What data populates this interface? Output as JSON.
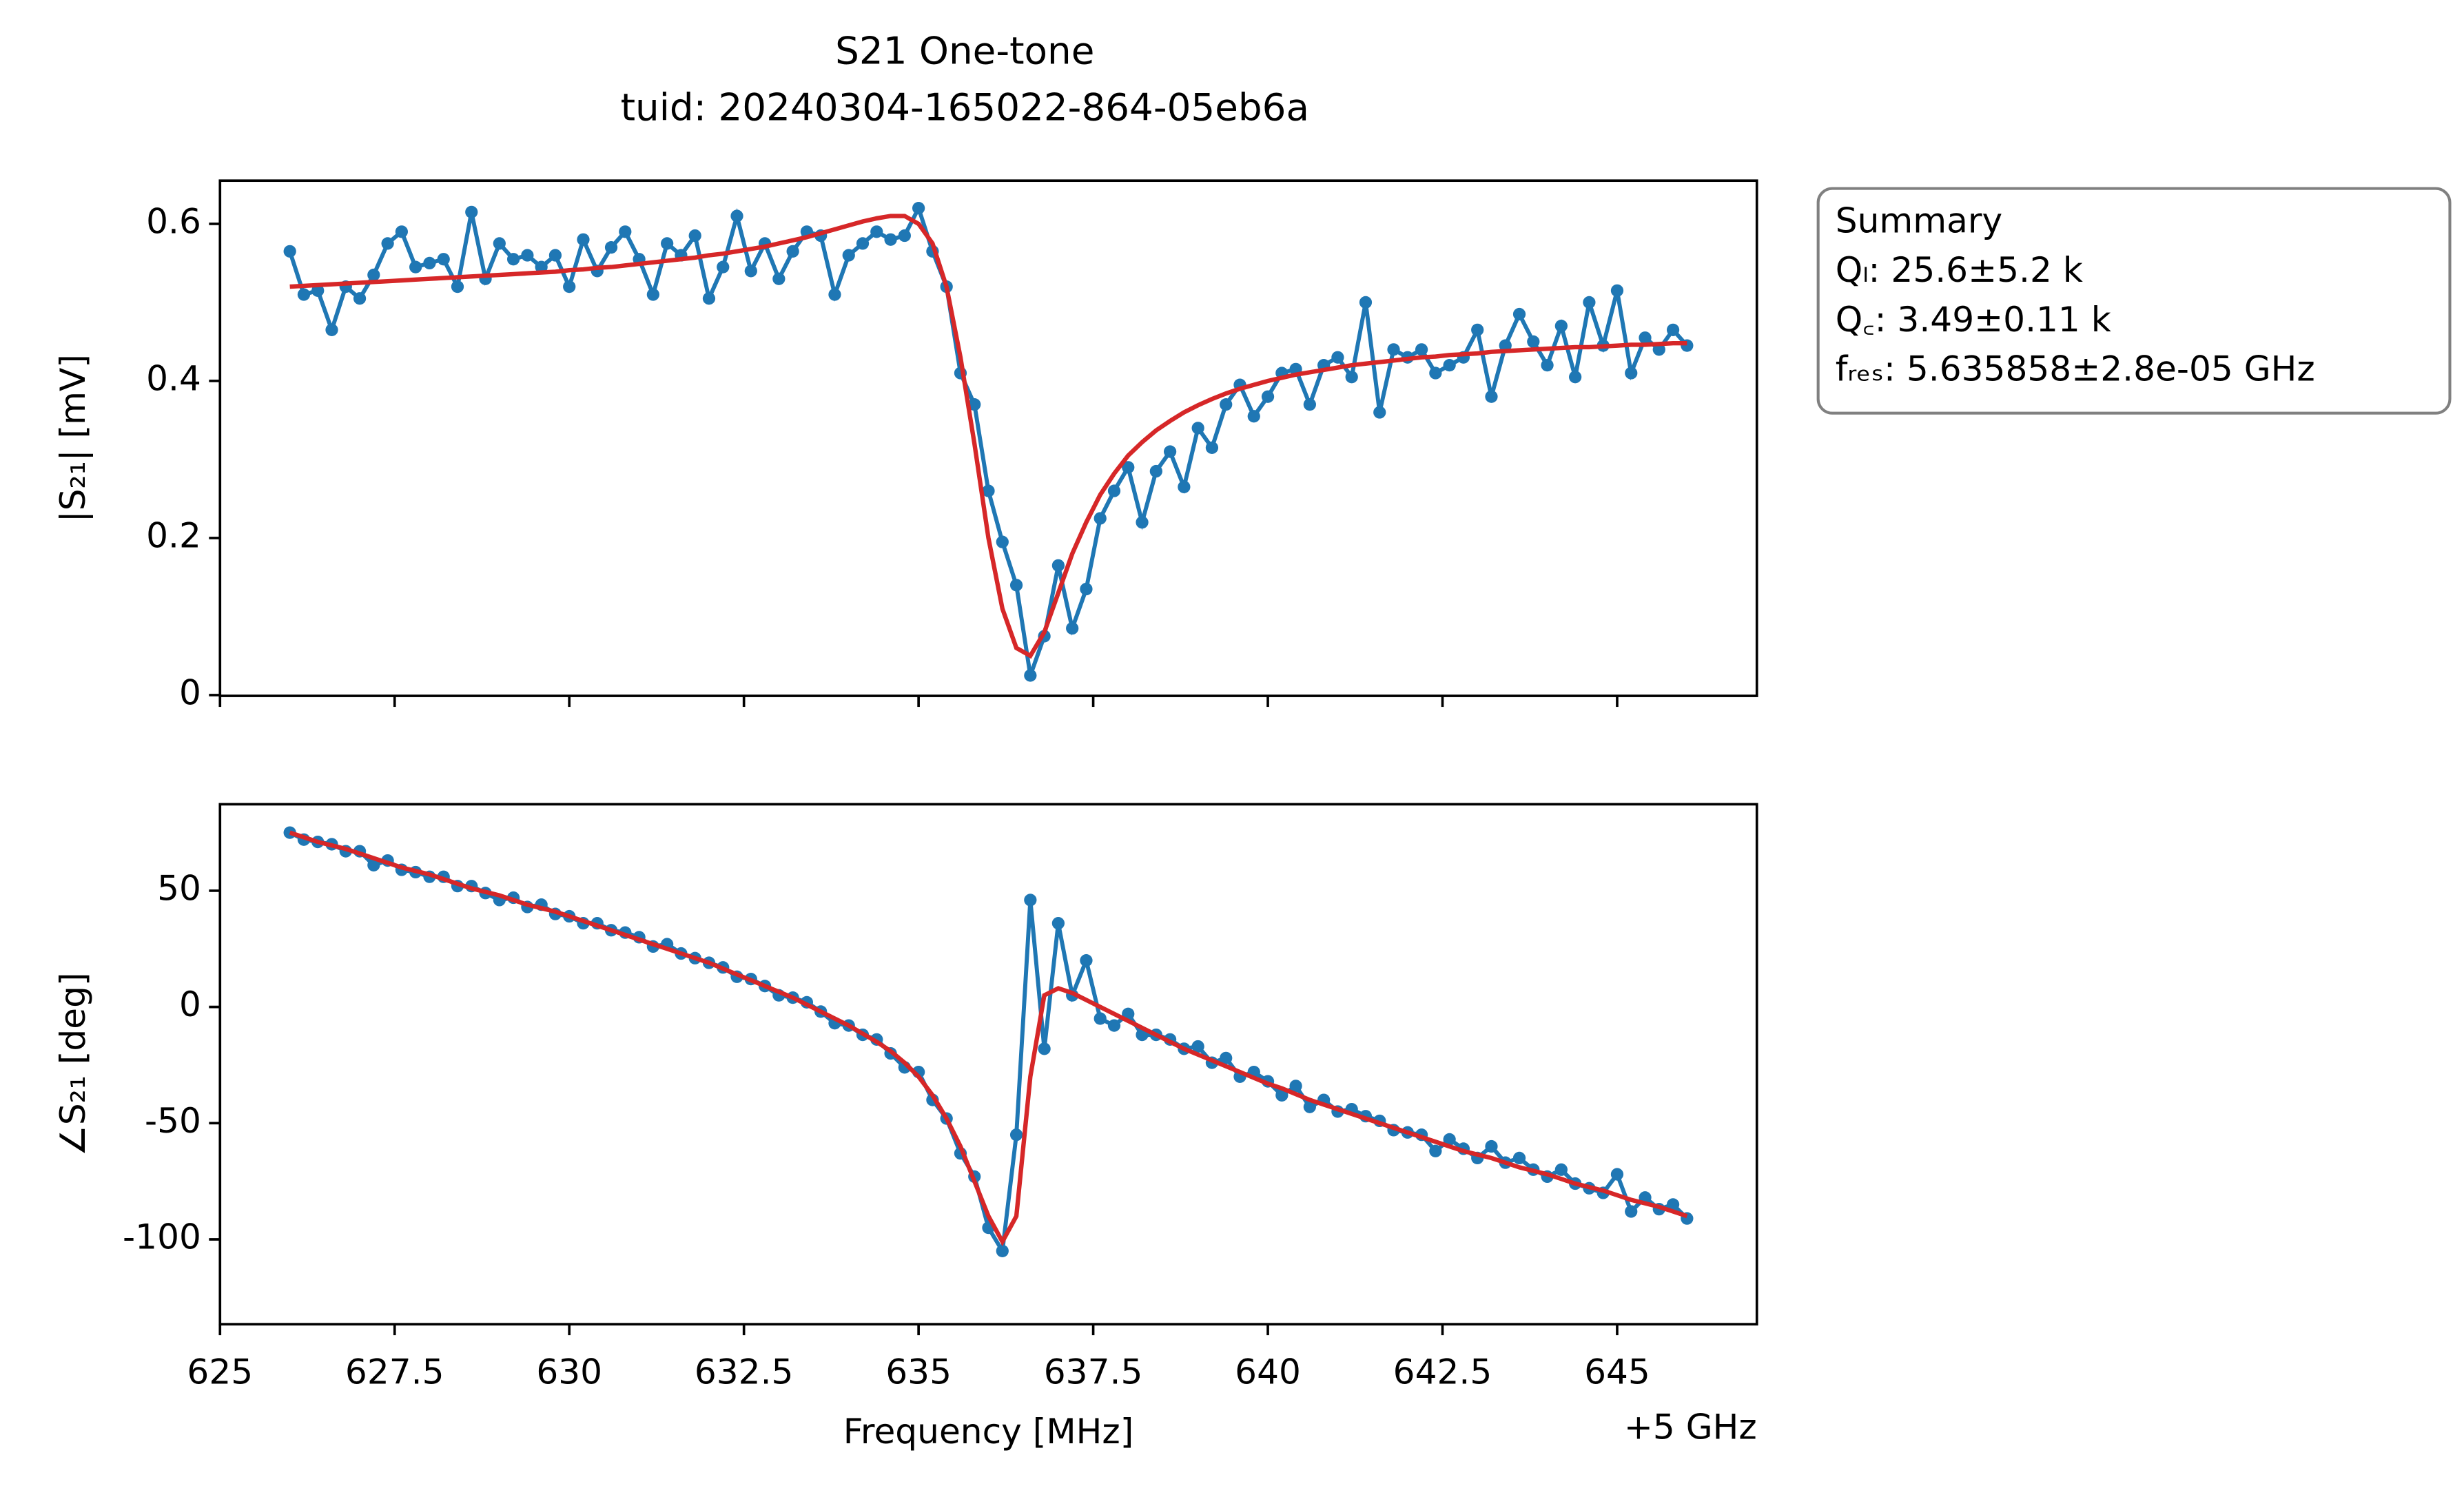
{
  "chart_data": [
    {
      "type": "line",
      "title": "S21 One-tone",
      "subtitle": "tuid: 20240304-165022-864-05eb6a",
      "ylabel": "|S₂₁| [mV]",
      "annotation": [
        "Summary",
        "Qₗ: 25.6±5.2 k",
        "Q꜀: 3.49±0.11 k",
        "fᵣₑₛ: 5.635858±2.8e-05 GHz"
      ],
      "xlim": [
        625,
        647
      ],
      "xticks": [
        625,
        627.5,
        630,
        632.5,
        635,
        637.5,
        640,
        642.5,
        645
      ],
      "show_xtick_labels": false,
      "ylim": [
        -0.001,
        0.655
      ],
      "yticks": [
        0,
        0.2,
        0.4,
        0.6
      ],
      "x": [
        626,
        626.2,
        626.4,
        626.6,
        626.8,
        627,
        627.2,
        627.4,
        627.6,
        627.8,
        628,
        628.2,
        628.4,
        628.6,
        628.8,
        629,
        629.2,
        629.4,
        629.6,
        629.8,
        630,
        630.2,
        630.4,
        630.6,
        630.8,
        631,
        631.2,
        631.4,
        631.6,
        631.8,
        632,
        632.2,
        632.4,
        632.6,
        632.8,
        633,
        633.2,
        633.4,
        633.6,
        633.8,
        634,
        634.2,
        634.4,
        634.6,
        634.8,
        635,
        635.2,
        635.4,
        635.6,
        635.8,
        636,
        636.2,
        636.4,
        636.6,
        636.8,
        637,
        637.2,
        637.4,
        637.6,
        637.8,
        638,
        638.2,
        638.4,
        638.6,
        638.8,
        639,
        639.2,
        639.4,
        639.6,
        639.8,
        640,
        640.2,
        640.4,
        640.6,
        640.8,
        641,
        641.2,
        641.4,
        641.6,
        641.8,
        642,
        642.2,
        642.4,
        642.6,
        642.8,
        643,
        643.2,
        643.4,
        643.6,
        643.8,
        644,
        644.2,
        644.4,
        644.6,
        644.8,
        645,
        645.2,
        645.4,
        645.6,
        645.8,
        646
      ],
      "series": [
        {
          "color": "#1f77b4",
          "marker": true,
          "values": [
            0.565,
            0.51,
            0.515,
            0.465,
            0.52,
            0.505,
            0.535,
            0.575,
            0.59,
            0.545,
            0.55,
            0.555,
            0.52,
            0.615,
            0.53,
            0.575,
            0.555,
            0.56,
            0.545,
            0.56,
            0.52,
            0.58,
            0.54,
            0.57,
            0.59,
            0.555,
            0.51,
            0.575,
            0.56,
            0.585,
            0.505,
            0.545,
            0.61,
            0.54,
            0.575,
            0.53,
            0.565,
            0.59,
            0.585,
            0.51,
            0.56,
            0.575,
            0.59,
            0.58,
            0.585,
            0.62,
            0.565,
            0.52,
            0.41,
            0.37,
            0.26,
            0.195,
            0.14,
            0.025,
            0.075,
            0.165,
            0.085,
            0.135,
            0.225,
            0.26,
            0.29,
            0.22,
            0.285,
            0.31,
            0.265,
            0.34,
            0.315,
            0.37,
            0.395,
            0.355,
            0.38,
            0.41,
            0.415,
            0.37,
            0.42,
            0.43,
            0.405,
            0.5,
            0.36,
            0.44,
            0.43,
            0.44,
            0.41,
            0.42,
            0.43,
            0.465,
            0.38,
            0.445,
            0.485,
            0.45,
            0.42,
            0.47,
            0.405,
            0.5,
            0.445,
            0.515,
            0.41,
            0.455,
            0.44,
            0.465,
            0.445
          ]
        },
        {
          "color": "#d62728",
          "marker": false,
          "values": [
            0.52,
            0.521,
            0.522,
            0.523,
            0.524,
            0.525,
            0.526,
            0.527,
            0.528,
            0.529,
            0.53,
            0.531,
            0.532,
            0.533,
            0.534,
            0.535,
            0.536,
            0.537,
            0.538,
            0.539,
            0.541,
            0.542,
            0.544,
            0.545,
            0.547,
            0.549,
            0.551,
            0.553,
            0.555,
            0.557,
            0.56,
            0.562,
            0.565,
            0.568,
            0.571,
            0.575,
            0.579,
            0.583,
            0.588,
            0.593,
            0.598,
            0.603,
            0.607,
            0.61,
            0.61,
            0.6,
            0.575,
            0.52,
            0.43,
            0.32,
            0.2,
            0.11,
            0.06,
            0.05,
            0.08,
            0.13,
            0.18,
            0.22,
            0.255,
            0.282,
            0.305,
            0.322,
            0.337,
            0.349,
            0.36,
            0.369,
            0.377,
            0.384,
            0.39,
            0.395,
            0.4,
            0.404,
            0.408,
            0.411,
            0.414,
            0.417,
            0.42,
            0.422,
            0.424,
            0.426,
            0.428,
            0.43,
            0.431,
            0.433,
            0.434,
            0.435,
            0.437,
            0.438,
            0.439,
            0.44,
            0.441,
            0.442,
            0.443,
            0.443,
            0.444,
            0.445,
            0.446,
            0.446,
            0.447,
            0.448,
            0.448
          ]
        }
      ]
    },
    {
      "type": "line",
      "ylabel": "∠S₂₁ [deg]",
      "xlabel": "Frequency [MHz]",
      "x_offset_label": "+5 GHz",
      "xlim": [
        625,
        647
      ],
      "xticks": [
        625,
        627.5,
        630,
        632.5,
        635,
        637.5,
        640,
        642.5,
        645
      ],
      "show_xtick_labels": true,
      "ylim": [
        -136.5,
        87.2
      ],
      "yticks": [
        -100,
        -50,
        0,
        50
      ],
      "x": [
        626,
        626.2,
        626.4,
        626.6,
        626.8,
        627,
        627.2,
        627.4,
        627.6,
        627.8,
        628,
        628.2,
        628.4,
        628.6,
        628.8,
        629,
        629.2,
        629.4,
        629.6,
        629.8,
        630,
        630.2,
        630.4,
        630.6,
        630.8,
        631,
        631.2,
        631.4,
        631.6,
        631.8,
        632,
        632.2,
        632.4,
        632.6,
        632.8,
        633,
        633.2,
        633.4,
        633.6,
        633.8,
        634,
        634.2,
        634.4,
        634.6,
        634.8,
        635,
        635.2,
        635.4,
        635.6,
        635.8,
        636,
        636.2,
        636.4,
        636.6,
        636.8,
        637,
        637.2,
        637.4,
        637.6,
        637.8,
        638,
        638.2,
        638.4,
        638.6,
        638.8,
        639,
        639.2,
        639.4,
        639.6,
        639.8,
        640,
        640.2,
        640.4,
        640.6,
        640.8,
        641,
        641.2,
        641.4,
        641.6,
        641.8,
        642,
        642.2,
        642.4,
        642.6,
        642.8,
        643,
        643.2,
        643.4,
        643.6,
        643.8,
        644,
        644.2,
        644.4,
        644.6,
        644.8,
        645,
        645.2,
        645.4,
        645.6,
        645.8,
        646
      ],
      "series": [
        {
          "color": "#1f77b4",
          "marker": true,
          "values": [
            75,
            72,
            71,
            70,
            67,
            67,
            61,
            63,
            59,
            58,
            56,
            56,
            52,
            52,
            49,
            46,
            47,
            43,
            44,
            40,
            39,
            36,
            36,
            33,
            32,
            30,
            26,
            27,
            23,
            21,
            19,
            17,
            13,
            12,
            9,
            5,
            4,
            2,
            -2,
            -7,
            -8,
            -12,
            -14,
            -20,
            -26,
            -28,
            -40,
            -48,
            -63,
            -73,
            -95,
            -105,
            -55,
            46,
            -18,
            36,
            5,
            20,
            -5,
            -8,
            -3,
            -12,
            -12,
            -14,
            -18,
            -17,
            -24,
            -22,
            -30,
            -28,
            -32,
            -38,
            -34,
            -43,
            -40,
            -45,
            -44,
            -47,
            -49,
            -53,
            -54,
            -55,
            -62,
            -57,
            -61,
            -65,
            -60,
            -67,
            -65,
            -70,
            -73,
            -70,
            -76,
            -78,
            -80,
            -72,
            -88,
            -82,
            -87,
            -85,
            -91
          ]
        },
        {
          "color": "#d62728",
          "marker": false,
          "values": [
            75,
            73,
            71,
            69.5,
            68,
            66,
            64,
            62,
            60,
            58.5,
            57,
            55,
            53,
            51,
            49.5,
            48,
            46,
            44,
            42.5,
            41,
            39,
            37,
            35,
            33,
            31,
            29,
            27,
            25,
            23,
            21,
            19,
            16.5,
            14,
            11.5,
            9,
            6.5,
            4,
            1,
            -2,
            -5,
            -8,
            -11.5,
            -15,
            -19,
            -24,
            -30,
            -38,
            -48,
            -60,
            -75,
            -90,
            -101,
            -90,
            -30,
            5,
            8,
            6,
            3,
            0,
            -3,
            -6,
            -9,
            -12,
            -15,
            -18,
            -20.5,
            -23,
            -25.5,
            -28,
            -30.5,
            -33,
            -35,
            -37.5,
            -40,
            -42,
            -44,
            -46,
            -48,
            -50,
            -52,
            -54,
            -56,
            -58,
            -60,
            -62,
            -63.5,
            -65,
            -67,
            -69,
            -70.5,
            -72,
            -74,
            -76,
            -77.5,
            -79,
            -81,
            -83,
            -84.5,
            -86,
            -88,
            -90
          ]
        }
      ]
    }
  ]
}
